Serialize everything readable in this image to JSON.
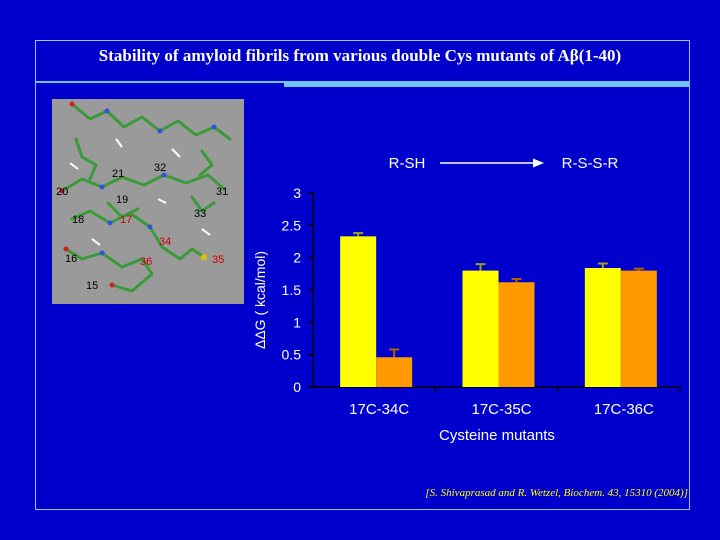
{
  "title": "Stability of amyloid fibrils from various double Cys mutants of Aβ(1-40)",
  "citation": "[S. Shivaprasad and R. Wetzel, Biochem. 43, 15310 (2004)]",
  "molecule": {
    "residue_labels": [
      {
        "text": "21",
        "color": "#000000"
      },
      {
        "text": "32",
        "color": "#000000"
      },
      {
        "text": "20",
        "color": "#000000"
      },
      {
        "text": "19",
        "color": "#000000"
      },
      {
        "text": "31",
        "color": "#000000"
      },
      {
        "text": "33",
        "color": "#000000"
      },
      {
        "text": "18",
        "color": "#000000"
      },
      {
        "text": "17",
        "color": "#cc0000"
      },
      {
        "text": "34",
        "color": "#cc0000"
      },
      {
        "text": "16",
        "color": "#000000"
      },
      {
        "text": "36",
        "color": "#cc0000"
      },
      {
        "text": "35",
        "color": "#cc0000"
      },
      {
        "text": "15",
        "color": "#000000"
      }
    ]
  },
  "chart_data": {
    "type": "bar",
    "title": "",
    "xlabel": "Cysteine mutants",
    "ylabel": "ΔΔG ( kcal/mol)",
    "ylim": [
      0,
      3
    ],
    "yticks": [
      "0",
      "0.5",
      "1",
      "1.5",
      "2",
      "2.5",
      "3"
    ],
    "ytick_values": [
      0,
      0.5,
      1,
      1.5,
      2,
      2.5,
      3
    ],
    "categories": [
      "17C-34C",
      "17C-35C",
      "17C-36C"
    ],
    "series": [
      {
        "name": "R-SH",
        "color": "#ffff00",
        "values": [
          2.33,
          1.8,
          1.84
        ],
        "errors": [
          0.05,
          0.1,
          0.07
        ]
      },
      {
        "name": "R-S-S-R",
        "color": "#ff9900",
        "values": [
          0.46,
          1.62,
          1.8
        ],
        "errors": [
          0.12,
          0.05,
          0.03
        ]
      }
    ],
    "grid": false,
    "legend_arrow": {
      "from": "R-SH",
      "to": "R-S-S-R"
    }
  },
  "colors": {
    "background": "#0000cc",
    "frame": "#9ec8ff",
    "rule": "#6fc3ff",
    "text": "#ffffff"
  }
}
